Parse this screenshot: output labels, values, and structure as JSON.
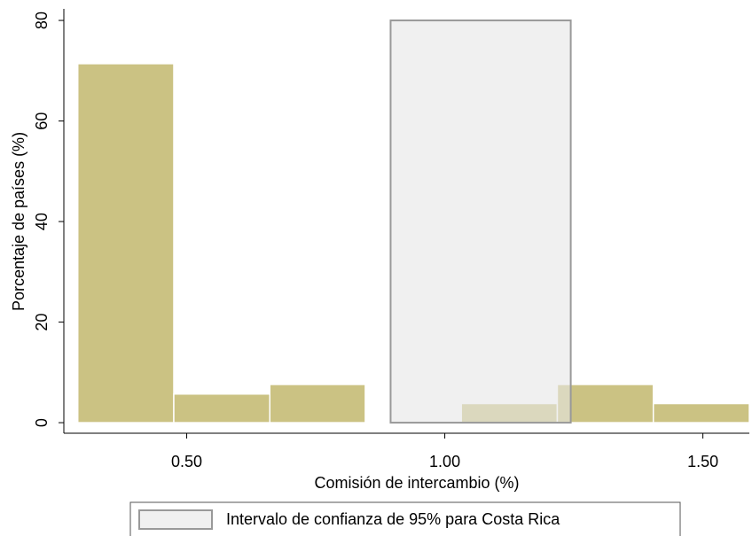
{
  "chart_data": {
    "type": "histogram",
    "bins": [
      0.289,
      0.475,
      0.661,
      0.846,
      1.032,
      1.218,
      1.404,
      1.59
    ],
    "values": [
      71.4,
      5.7,
      7.6,
      0,
      3.8,
      7.6,
      3.8
    ],
    "color": "#cbc283",
    "interval": {
      "name": "Intervalo de confianza de 95% para Costa Rica",
      "range": [
        0.895,
        1.244
      ],
      "height": 80,
      "color": "#e6e6e6"
    },
    "xlabel": "Comisión de intercambio (%)",
    "ylabel": "Porcentaje de países (%)",
    "xlim": [
      0.262,
      1.59
    ],
    "xticks": [
      {
        "value": 0.5,
        "label": "0.50"
      },
      {
        "value": 1.0,
        "label": "1.00"
      },
      {
        "value": 1.5,
        "label": "1.50"
      }
    ],
    "ylim": [
      -2.1,
      82.3
    ],
    "yticks": [
      0,
      20,
      40,
      60,
      80
    ]
  }
}
